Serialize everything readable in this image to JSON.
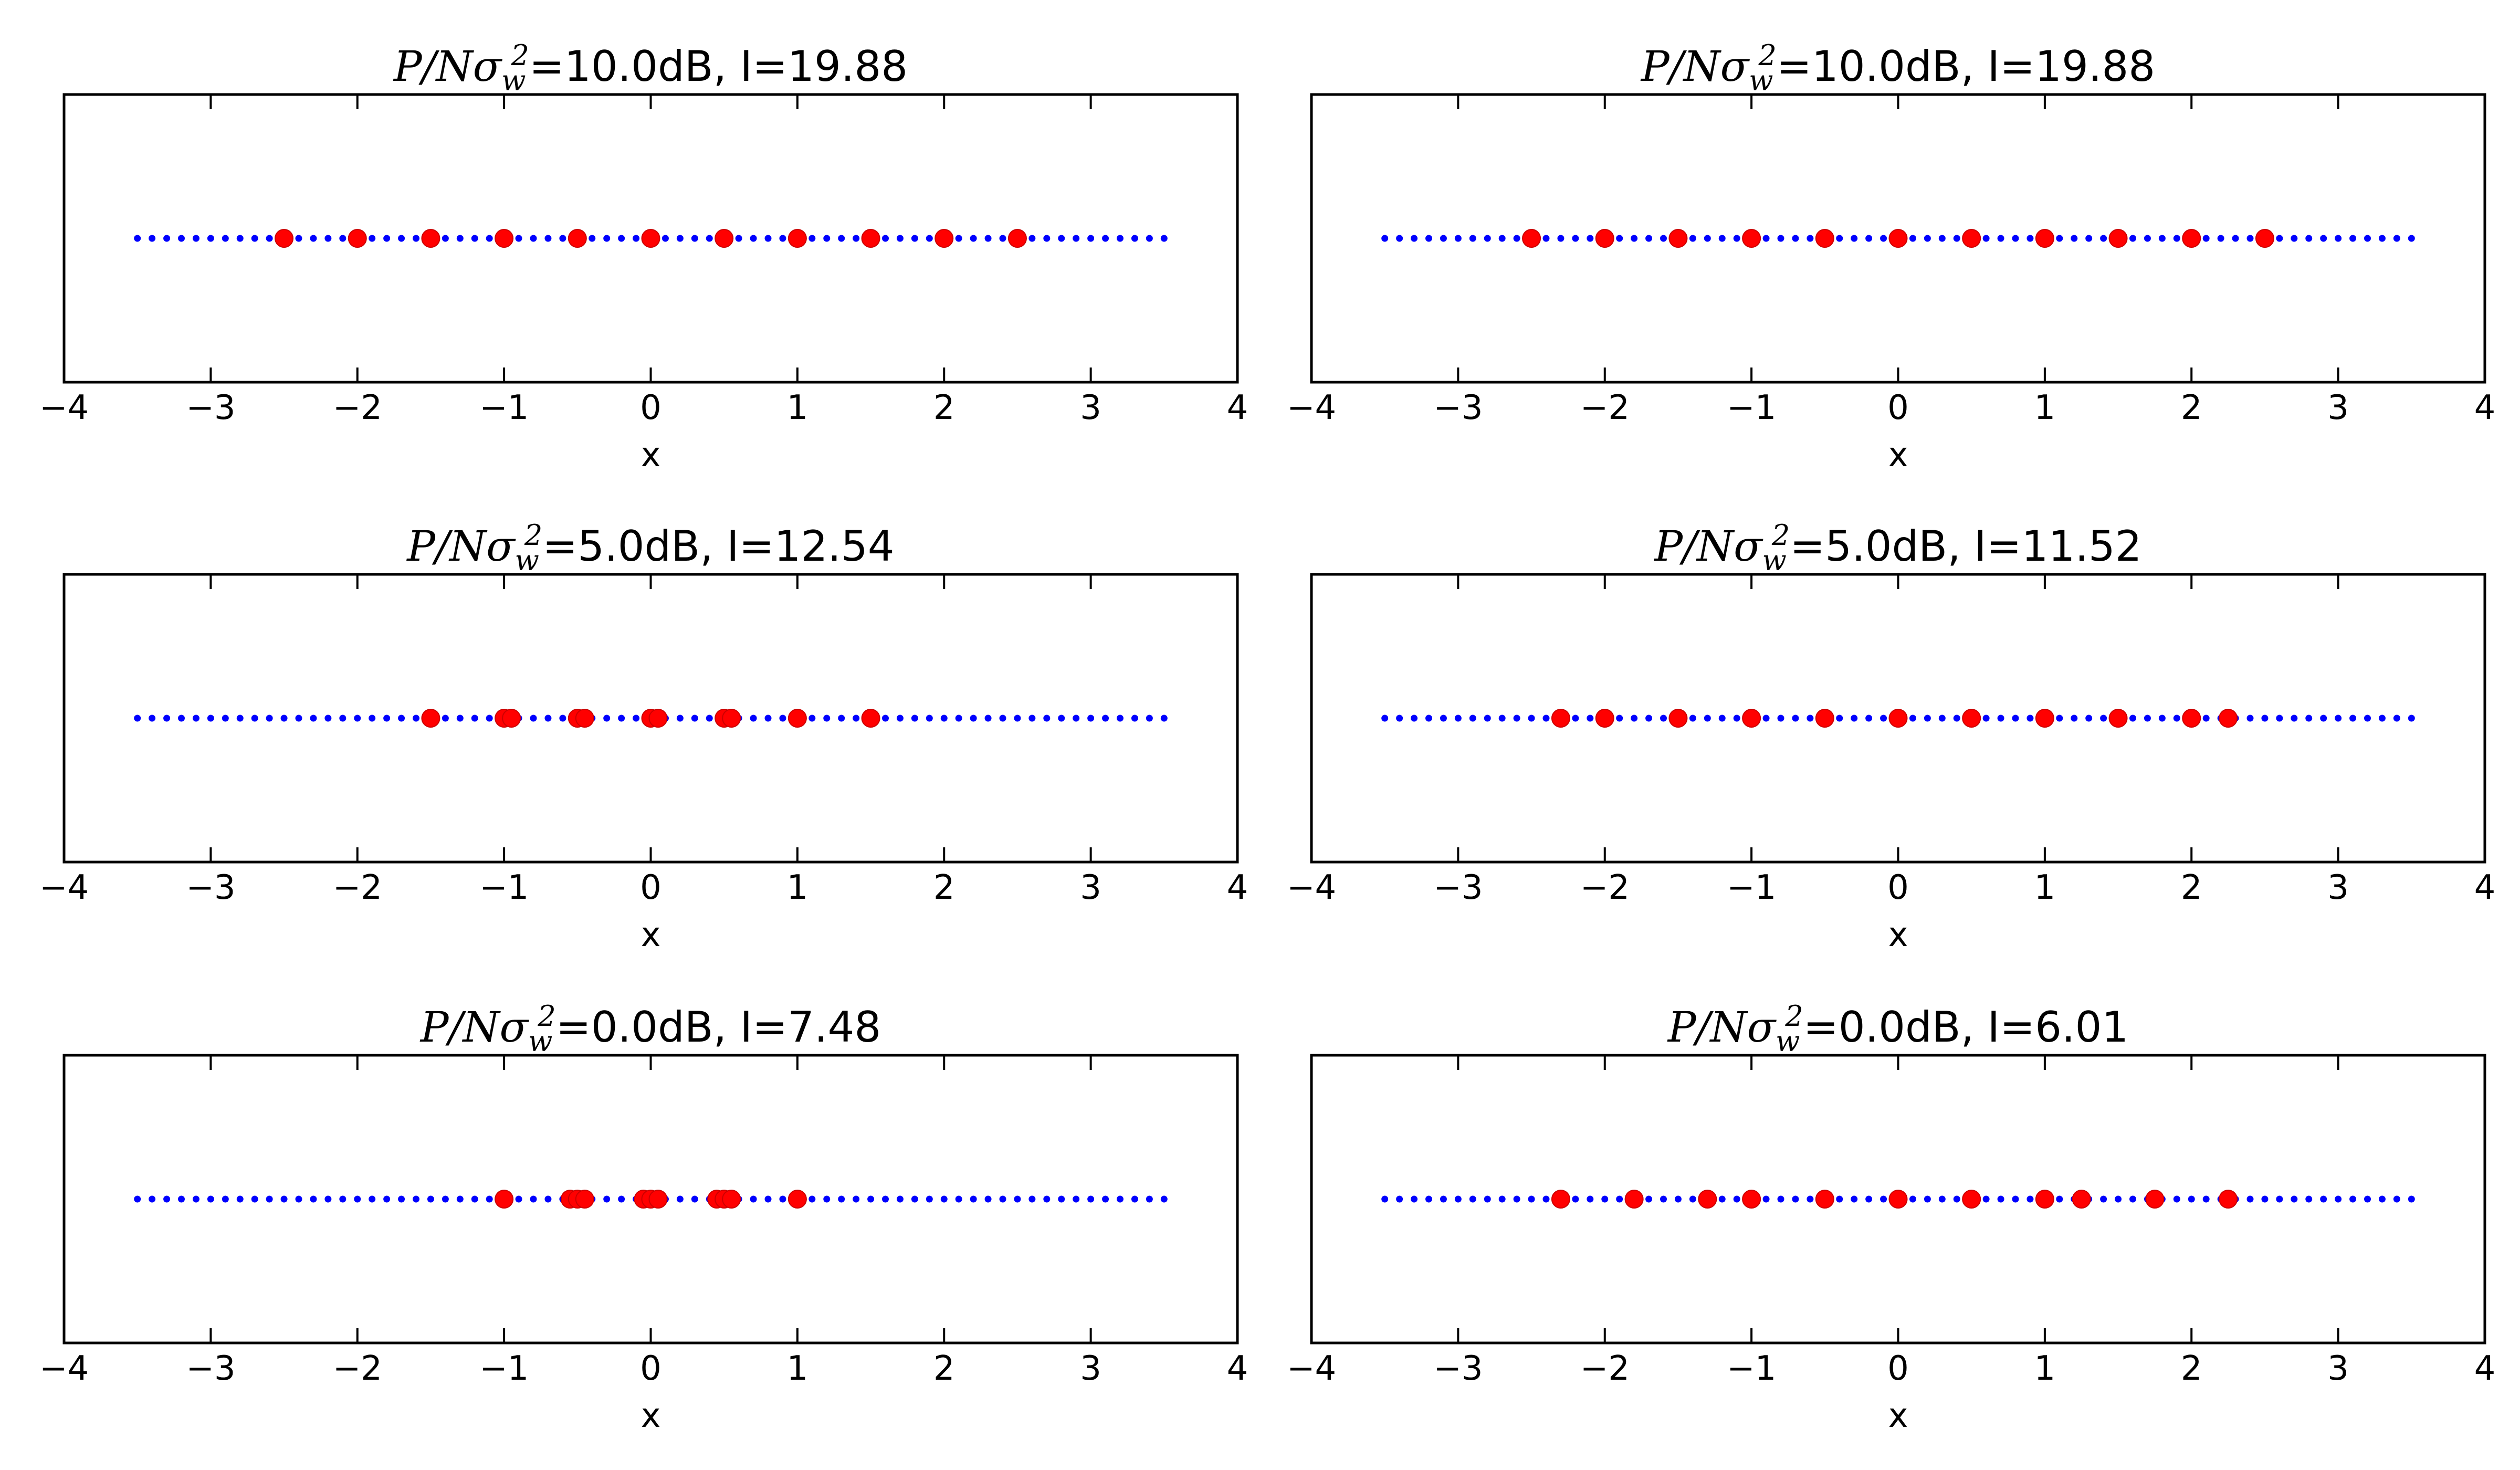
{
  "colors": {
    "grid_points": "#0000ff",
    "constellation": "#ff0000",
    "frame": "#000000",
    "background": "#ffffff"
  },
  "chart_data": [
    {
      "type": "scatter",
      "title": {
        "prefix": "P/Nσ",
        "sub": "w",
        "sup": "2",
        "suffix": "=10.0dB, I=19.88"
      },
      "xlabel": "x",
      "ylabel": "",
      "xlim": [
        -4,
        4
      ],
      "xticks": [
        "−4",
        "−3",
        "−2",
        "−1",
        "0",
        "1",
        "2",
        "3",
        "4"
      ],
      "grid_series": {
        "name": "grid",
        "x_start": -3.5,
        "x_end": 3.5,
        "count": 71,
        "y": 0
      },
      "points_series": {
        "name": "constellation",
        "x": [
          -2.5,
          -2.0,
          -1.5,
          -1.0,
          -0.5,
          0.0,
          0.5,
          1.0,
          1.5,
          2.0,
          2.5
        ],
        "y": 0
      }
    },
    {
      "type": "scatter",
      "title": {
        "prefix": "P/Nσ",
        "sub": "w",
        "sup": "2",
        "suffix": "=10.0dB, I=19.88"
      },
      "xlabel": "x",
      "ylabel": "",
      "xlim": [
        -4,
        4
      ],
      "xticks": [
        "−4",
        "−3",
        "−2",
        "−1",
        "0",
        "1",
        "2",
        "3",
        "4"
      ],
      "grid_series": {
        "name": "grid",
        "x_start": -3.5,
        "x_end": 3.5,
        "count": 71,
        "y": 0
      },
      "points_series": {
        "name": "constellation",
        "x": [
          -2.5,
          -2.0,
          -1.5,
          -1.0,
          -0.5,
          0.0,
          0.5,
          1.0,
          1.5,
          2.0,
          2.5
        ],
        "y": 0
      }
    },
    {
      "type": "scatter",
      "title": {
        "prefix": "P/Nσ",
        "sub": "w",
        "sup": "2",
        "suffix": "=5.0dB, I=12.54"
      },
      "xlabel": "x",
      "ylabel": "",
      "xlim": [
        -4,
        4
      ],
      "xticks": [
        "−4",
        "−3",
        "−2",
        "−1",
        "0",
        "1",
        "2",
        "3",
        "4"
      ],
      "grid_series": {
        "name": "grid",
        "x_start": -3.5,
        "x_end": 3.5,
        "count": 71,
        "y": 0
      },
      "points_series": {
        "name": "constellation",
        "x": [
          -1.5,
          -1.0,
          -0.95,
          -0.5,
          -0.45,
          0.0,
          0.05,
          0.5,
          0.55,
          1.0,
          1.5
        ],
        "y": 0
      }
    },
    {
      "type": "scatter",
      "title": {
        "prefix": "P/Nσ",
        "sub": "w",
        "sup": "2",
        "suffix": "=5.0dB, I=11.52"
      },
      "xlabel": "x",
      "ylabel": "",
      "xlim": [
        -4,
        4
      ],
      "xticks": [
        "−4",
        "−3",
        "−2",
        "−1",
        "0",
        "1",
        "2",
        "3",
        "4"
      ],
      "grid_series": {
        "name": "grid",
        "x_start": -3.5,
        "x_end": 3.5,
        "count": 71,
        "y": 0
      },
      "points_series": {
        "name": "constellation",
        "x": [
          -2.3,
          -2.0,
          -1.5,
          -1.0,
          -0.5,
          0.0,
          0.5,
          1.0,
          1.5,
          2.0,
          2.25
        ],
        "y": 0
      }
    },
    {
      "type": "scatter",
      "title": {
        "prefix": "P/Nσ",
        "sub": "w",
        "sup": "2",
        "suffix": "=0.0dB, I=7.48"
      },
      "xlabel": "x",
      "ylabel": "",
      "xlim": [
        -4,
        4
      ],
      "xticks": [
        "−4",
        "−3",
        "−2",
        "−1",
        "0",
        "1",
        "2",
        "3",
        "4"
      ],
      "grid_series": {
        "name": "grid",
        "x_start": -3.5,
        "x_end": 3.5,
        "count": 71,
        "y": 0
      },
      "points_series": {
        "name": "constellation",
        "x": [
          -1.0,
          -0.55,
          -0.5,
          -0.45,
          -0.05,
          0.0,
          0.05,
          0.45,
          0.5,
          0.55,
          1.0
        ],
        "y": 0
      }
    },
    {
      "type": "scatter",
      "title": {
        "prefix": "P/Nσ",
        "sub": "w",
        "sup": "2",
        "suffix": "=0.0dB, I=6.01"
      },
      "xlabel": "x",
      "ylabel": "",
      "xlim": [
        -4,
        4
      ],
      "xticks": [
        "−4",
        "−3",
        "−2",
        "−1",
        "0",
        "1",
        "2",
        "3",
        "4"
      ],
      "grid_series": {
        "name": "grid",
        "x_start": -3.5,
        "x_end": 3.5,
        "count": 71,
        "y": 0
      },
      "points_series": {
        "name": "constellation",
        "x": [
          -2.3,
          -1.8,
          -1.3,
          -1.0,
          -0.5,
          0.0,
          0.5,
          1.0,
          1.25,
          1.75,
          2.25
        ],
        "y": 0
      }
    }
  ]
}
